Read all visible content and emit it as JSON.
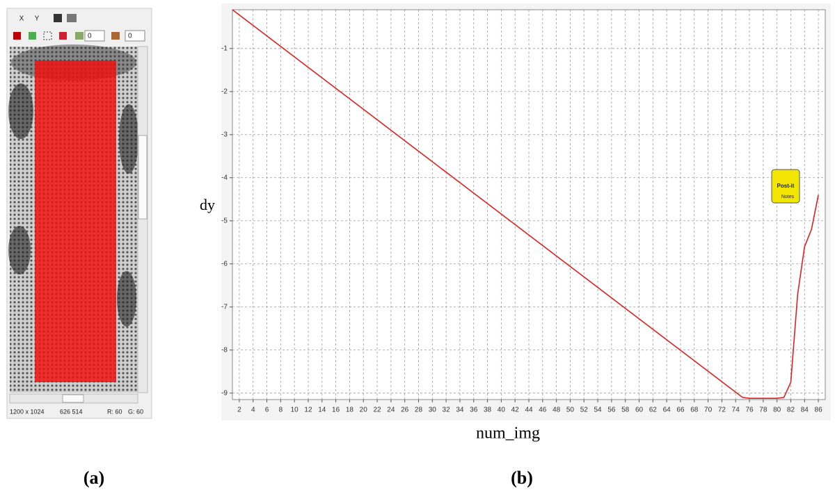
{
  "panel_a": {
    "label": "(a)",
    "toolbar": {
      "x_button": "X",
      "y_button": "Y",
      "input_1": "0",
      "input_2": "0"
    },
    "status_bar": {
      "size": "1200 x 1024",
      "position": "626 514",
      "r": "R: 60",
      "g": "G: 60"
    }
  },
  "panel_b_label": "(b)",
  "post_it": [
    "Post-it",
    "Notes"
  ],
  "chart_data": {
    "type": "line",
    "x_label": "num_img",
    "y_label": "dy",
    "x": [
      1,
      75,
      76,
      78,
      80,
      81,
      82,
      83,
      84,
      85,
      86
    ],
    "values": [
      -0.1,
      -9.1,
      -9.12,
      -9.12,
      -9.12,
      -9.1,
      -8.75,
      -6.7,
      -5.6,
      -5.2,
      -4.4
    ],
    "color": "#e02020",
    "xlim": [
      1,
      87
    ],
    "ylim": [
      -9.15,
      -0.1
    ],
    "xticks": [
      2,
      4,
      6,
      8,
      10,
      12,
      14,
      16,
      18,
      20,
      22,
      24,
      26,
      28,
      30,
      32,
      34,
      36,
      38,
      40,
      42,
      44,
      46,
      48,
      50,
      52,
      54,
      56,
      58,
      60,
      62,
      64,
      66,
      68,
      70,
      72,
      74,
      76,
      78,
      80,
      82,
      84,
      86
    ],
    "yticks": [
      -1,
      -2,
      -3,
      -4,
      -5,
      -6,
      -7,
      -8,
      -9
    ],
    "grid": true
  }
}
